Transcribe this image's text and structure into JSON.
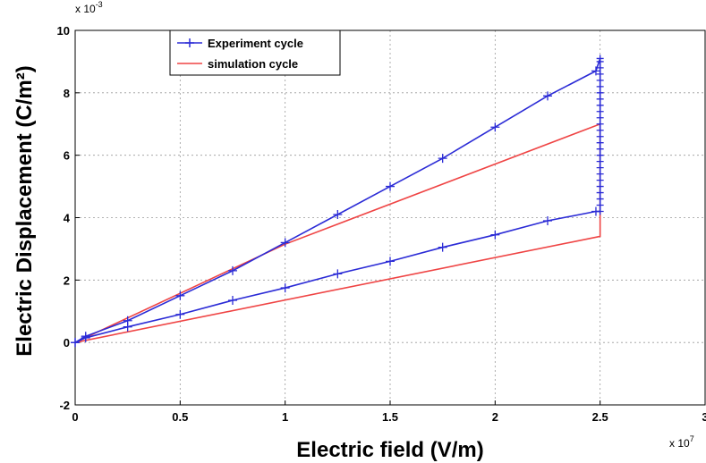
{
  "chart_data": {
    "type": "line",
    "xlabel": "Electric field (V/m)",
    "ylabel": "Electric Displacement (C/m²)",
    "x_multiplier": "x 10",
    "x_exponent": "7",
    "y_multiplier": "x 10",
    "y_exponent": "-3",
    "xlim": [
      0,
      3
    ],
    "ylim": [
      -2,
      10
    ],
    "xticks": [
      0,
      0.5,
      1,
      1.5,
      2,
      2.5,
      3
    ],
    "xtick_labels": [
      "0",
      "0.5",
      "1",
      "1.5",
      "2",
      "2.5",
      "3"
    ],
    "yticks": [
      -2,
      0,
      2,
      4,
      6,
      8,
      10
    ],
    "ytick_labels": [
      "-2",
      "0",
      "2",
      "4",
      "6",
      "8",
      "10"
    ],
    "grid": true,
    "legend_position": "top-left",
    "colors": {
      "experiment": "#2b2bd6",
      "simulation": "#ef4444"
    },
    "series": [
      {
        "name": "Experiment cycle",
        "marker": "+",
        "up": {
          "x": [
            0,
            0.05,
            0.25,
            0.5,
            0.75,
            1.0,
            1.25,
            1.5,
            1.75,
            2.0,
            2.25,
            2.48
          ],
          "y": [
            0,
            0.2,
            0.7,
            1.5,
            2.3,
            3.2,
            4.1,
            5.0,
            5.9,
            6.9,
            7.9,
            8.7
          ]
        },
        "saturation": {
          "x": 2.5,
          "y": [
            4.2,
            4.4,
            4.6,
            4.8,
            5.0,
            5.2,
            5.4,
            5.6,
            5.8,
            6.0,
            6.2,
            6.4,
            6.6,
            6.8,
            7.0,
            7.2,
            7.4,
            7.6,
            7.8,
            8.0,
            8.2,
            8.4,
            8.6,
            8.8,
            9.0,
            9.1
          ]
        },
        "down": {
          "x": [
            2.48,
            2.25,
            2.0,
            1.75,
            1.5,
            1.25,
            1.0,
            0.75,
            0.5,
            0.25,
            0.05,
            0
          ],
          "y": [
            4.2,
            3.9,
            3.45,
            3.05,
            2.6,
            2.2,
            1.75,
            1.35,
            0.9,
            0.5,
            0.15,
            0
          ]
        }
      },
      {
        "name": "simulation cycle",
        "x": [
          0,
          1.0,
          2.5,
          2.5,
          0
        ],
        "y": [
          0,
          3.15,
          7.0,
          3.4,
          0
        ]
      }
    ]
  }
}
